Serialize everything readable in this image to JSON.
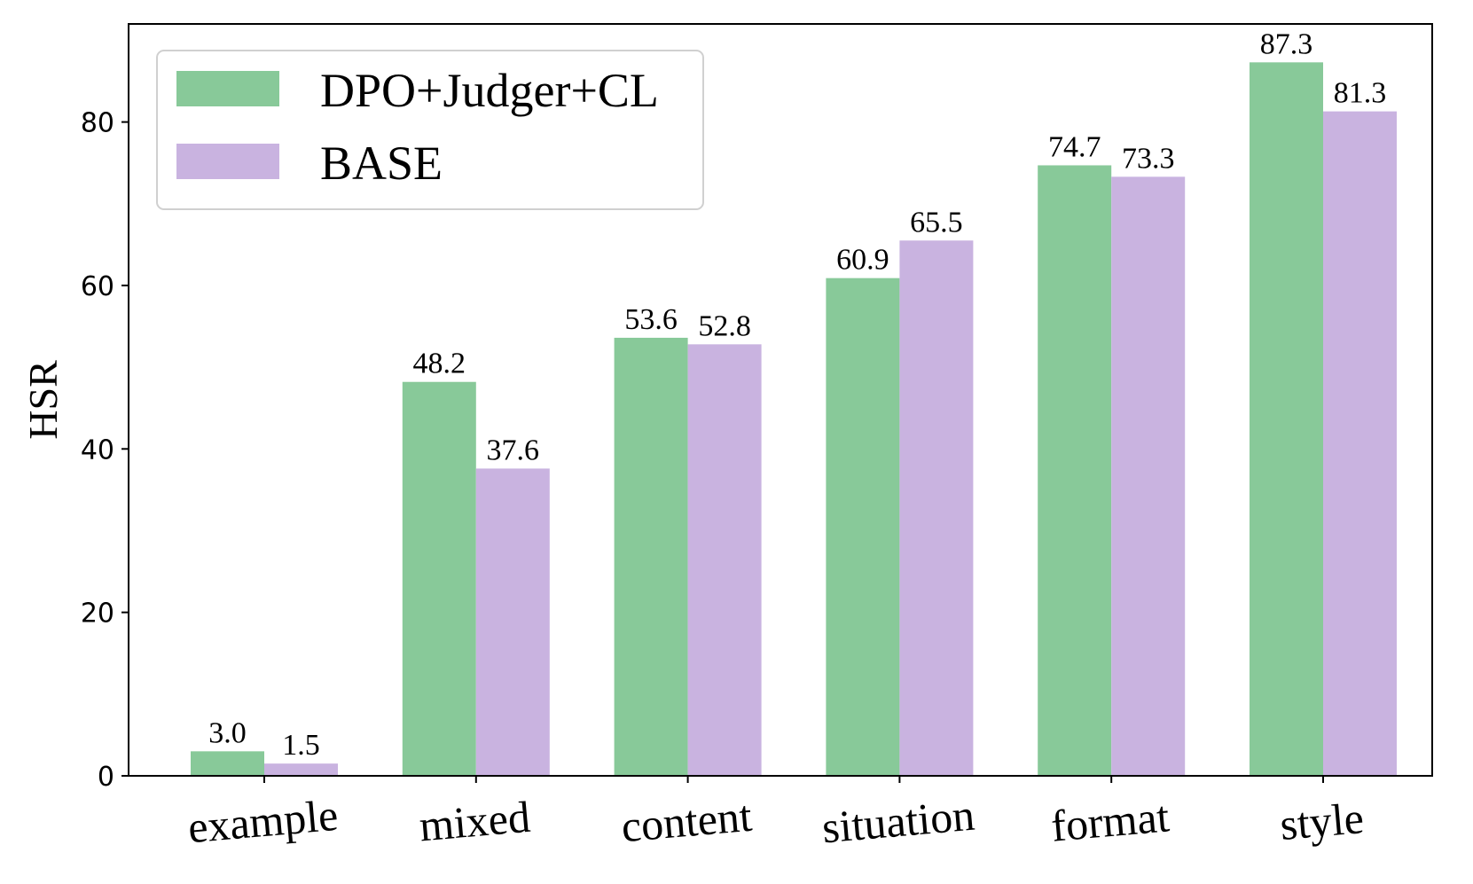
{
  "chart_data": {
    "type": "bar",
    "title": "",
    "xlabel": "",
    "ylabel": "HSR",
    "ylim": [
      0,
      92
    ],
    "yticks": [
      0,
      20,
      40,
      60,
      80
    ],
    "categories": [
      "example",
      "mixed",
      "content",
      "situation",
      "format",
      "style"
    ],
    "series": [
      {
        "name": "DPO+Judger+CL",
        "color": "#88c999",
        "values": [
          3.0,
          48.2,
          53.6,
          60.9,
          74.7,
          87.3
        ],
        "labels": [
          "3.0",
          "48.2",
          "53.6",
          "60.9",
          "74.7",
          "87.3"
        ]
      },
      {
        "name": "BASE",
        "color": "#c9b3e0",
        "values": [
          1.5,
          37.6,
          52.8,
          65.5,
          73.3,
          81.3
        ],
        "labels": [
          "1.5",
          "37.6",
          "52.8",
          "65.5",
          "73.3",
          "81.3"
        ]
      }
    ],
    "legend": "top-left",
    "grid": false
  }
}
